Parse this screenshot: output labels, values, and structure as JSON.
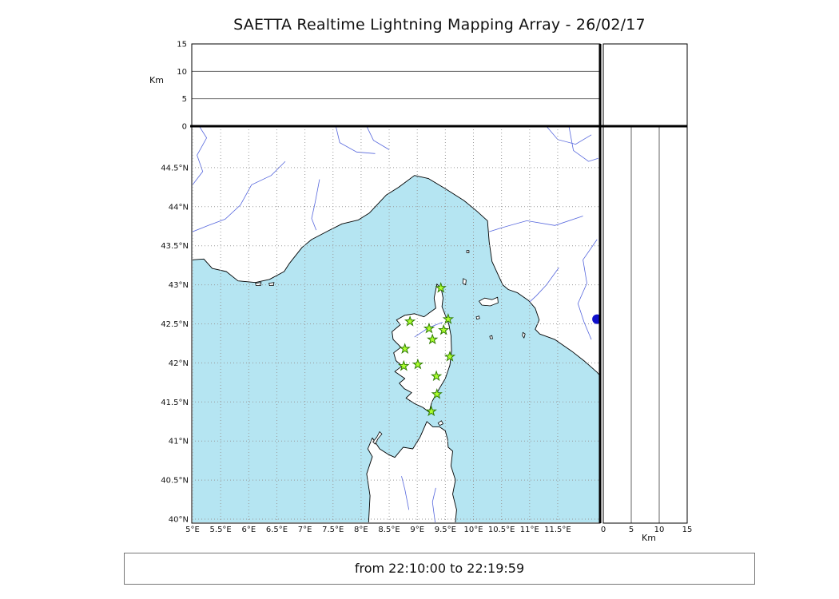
{
  "title": "SAETTA Realtime Lightning Mapping Array - 26/02/17",
  "status_text": "from 22:10:00 to 22:19:59",
  "altitude_axis": {
    "unit_label": "Km",
    "tick_values": [
      0,
      5,
      10,
      15
    ],
    "tick_labels": [
      "0",
      "5",
      "10",
      "15"
    ]
  },
  "distance_axis": {
    "unit_label": "Km",
    "tick_values": [
      0,
      5,
      10,
      15
    ],
    "tick_labels": [
      "0",
      "5",
      "10",
      "15"
    ]
  },
  "map": {
    "lon_tick_values": [
      5,
      5.5,
      6,
      6.5,
      7,
      7.5,
      8,
      8.5,
      9,
      9.5,
      10,
      10.5,
      11,
      11.5
    ],
    "lon_tick_labels": [
      "5°E",
      "5.5°E",
      "6°E",
      "6.5°E",
      "7°E",
      "7.5°E",
      "8°E",
      "8.5°E",
      "9°E",
      "9.5°E",
      "10°E",
      "10.5°E",
      "11°E",
      "11.5°E"
    ],
    "lat_tick_values": [
      40,
      40.5,
      41,
      41.5,
      42,
      42.5,
      43,
      43.5,
      44,
      44.5
    ],
    "lat_tick_labels": [
      "40°N",
      "40.5°N",
      "41°N",
      "41.5°N",
      "42°N",
      "42.5°N",
      "43°N",
      "43.5°N",
      "44°N",
      "44.5°N"
    ]
  },
  "chart_data": {
    "type": "scatter",
    "title": "SAETTA Realtime Lightning Mapping Array - 26/02/17",
    "time_window": {
      "from": "22:10:00",
      "to": "22:19:59"
    },
    "map_extent": {
      "lon_min": 5,
      "lon_max": 12.25,
      "lat_min": 39.95,
      "lat_max": 45.03
    },
    "altitude_axis_km": {
      "min": 0,
      "max": 15,
      "ticks": [
        0,
        5,
        10,
        15
      ]
    },
    "stations_lon_lat": [
      [
        9.42,
        42.96
      ],
      [
        8.87,
        42.53
      ],
      [
        9.21,
        42.44
      ],
      [
        9.55,
        42.56
      ],
      [
        9.47,
        42.42
      ],
      [
        9.27,
        42.3
      ],
      [
        8.78,
        42.18
      ],
      [
        9.58,
        42.08
      ],
      [
        8.76,
        41.96
      ],
      [
        9.01,
        41.98
      ],
      [
        9.34,
        41.83
      ],
      [
        9.35,
        41.6
      ],
      [
        9.25,
        41.38
      ]
    ],
    "station_marker": {
      "shape": "star",
      "fill": "#adff2f",
      "stroke": "#2f7d00"
    },
    "other_markers": [
      {
        "shape": "circle",
        "lon": 12.2,
        "lat": 42.56,
        "radius_px": 6,
        "color": "#1010cc"
      }
    ],
    "lightning_sources_plotted": 0
  },
  "colors": {
    "sea": "#b5e5f2",
    "land": "#ffffff",
    "coast": "#000000",
    "river": "#5566dd",
    "grid": "#999999",
    "panel_border": "#000000",
    "panel_gridline": "#666666"
  }
}
